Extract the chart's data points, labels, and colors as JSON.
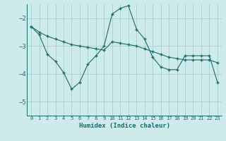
{
  "xlabel": "Humidex (Indice chaleur)",
  "ylabel": "",
  "background_color": "#ceeaea",
  "grid_color": "#a8d4d4",
  "line_color": "#1a6b6b",
  "xlim": [
    -0.5,
    23.5
  ],
  "ylim": [
    -5.5,
    -1.5
  ],
  "yticks": [
    -5,
    -4,
    -3,
    -2
  ],
  "xticks": [
    0,
    1,
    2,
    3,
    4,
    5,
    6,
    7,
    8,
    9,
    10,
    11,
    12,
    13,
    14,
    15,
    16,
    17,
    18,
    19,
    20,
    21,
    22,
    23
  ],
  "line1_x": [
    0,
    1,
    2,
    3,
    4,
    5,
    6,
    7,
    8,
    9,
    10,
    11,
    12,
    13,
    14,
    15,
    16,
    17,
    18,
    19,
    20,
    21,
    22,
    23
  ],
  "line1_y": [
    -2.3,
    -2.5,
    -2.65,
    -2.75,
    -2.85,
    -2.95,
    -3.0,
    -3.05,
    -3.1,
    -3.15,
    -2.85,
    -2.9,
    -2.95,
    -3.0,
    -3.1,
    -3.2,
    -3.3,
    -3.4,
    -3.45,
    -3.5,
    -3.5,
    -3.5,
    -3.5,
    -3.6
  ],
  "line2_x": [
    0,
    1,
    2,
    3,
    4,
    5,
    6,
    7,
    8,
    9,
    10,
    11,
    12,
    13,
    14,
    15,
    16,
    17,
    18,
    19,
    20,
    21,
    22,
    23
  ],
  "line2_y": [
    -2.3,
    -2.6,
    -3.3,
    -3.55,
    -3.95,
    -4.55,
    -4.3,
    -3.65,
    -3.35,
    -3.0,
    -1.85,
    -1.65,
    -1.55,
    -2.4,
    -2.75,
    -3.4,
    -3.75,
    -3.85,
    -3.85,
    -3.35,
    -3.35,
    -3.35,
    -3.35,
    -4.3
  ]
}
